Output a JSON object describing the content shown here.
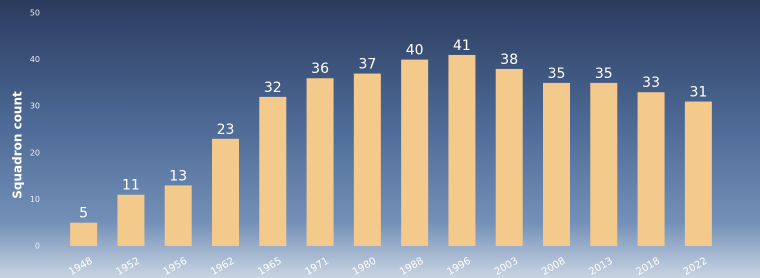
{
  "chart_data": {
    "type": "bar",
    "ylabel": "Squadron count",
    "categories": [
      "1948",
      "1952",
      "1956",
      "1962",
      "1965",
      "1971",
      "1980",
      "1988",
      "1996",
      "2003",
      "2008",
      "2013",
      "2018",
      "2022"
    ],
    "values": [
      5,
      11,
      13,
      23,
      32,
      36,
      37,
      40,
      41,
      38,
      35,
      35,
      33,
      31
    ],
    "color": "#f4c98c",
    "ylim": [
      0,
      50
    ],
    "yticks": [
      0,
      10,
      20,
      30,
      40,
      50
    ]
  }
}
